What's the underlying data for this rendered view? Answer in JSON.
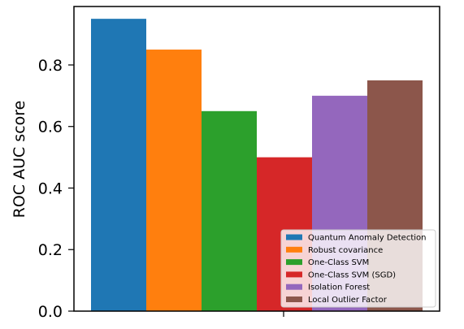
{
  "chart_data": {
    "type": "bar",
    "title": "",
    "xlabel": "",
    "ylabel": "ROC AUC score",
    "ylim": [
      0,
      0.99
    ],
    "yticks": [
      "0.0",
      "0.2",
      "0.4",
      "0.6",
      "0.8"
    ],
    "grid": false,
    "legend_position": "lower-right",
    "series": [
      {
        "name": "Quantum Anomaly Detection",
        "value": 0.95,
        "color": "#1f77b4"
      },
      {
        "name": "Robust covariance",
        "value": 0.85,
        "color": "#ff7f0e"
      },
      {
        "name": "One-Class SVM",
        "value": 0.65,
        "color": "#2ca02c"
      },
      {
        "name": "One-Class SVM (SGD)",
        "value": 0.5,
        "color": "#d62728"
      },
      {
        "name": "Isolation Forest",
        "value": 0.7,
        "color": "#9467bd"
      },
      {
        "name": "Local Outlier Factor",
        "value": 0.75,
        "color": "#8c564b"
      }
    ]
  }
}
